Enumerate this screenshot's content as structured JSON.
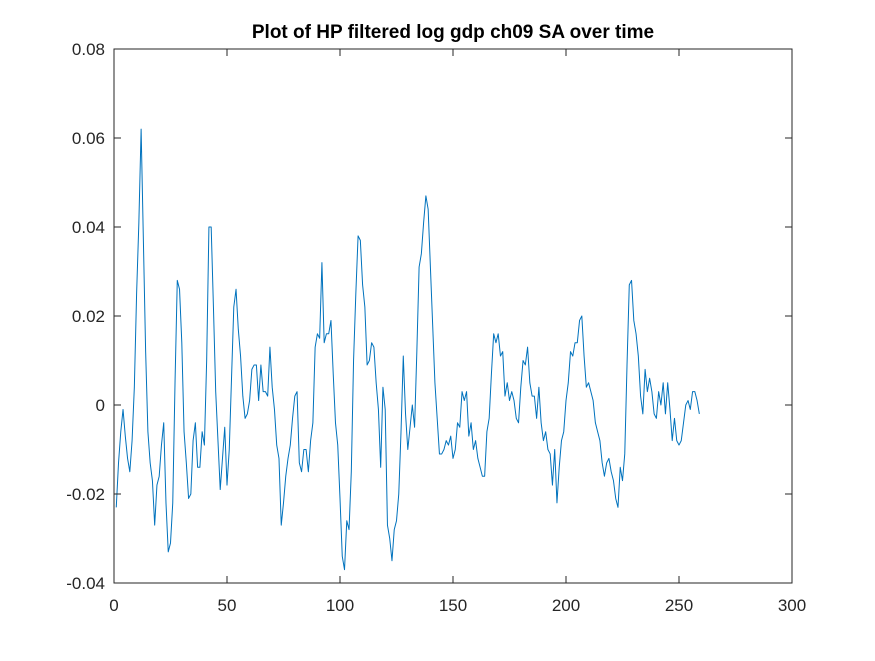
{
  "chart_data": {
    "type": "line",
    "title": "Plot of HP filtered log gdp ch09 SA over time",
    "xlabel": "",
    "ylabel": "",
    "xlim": [
      0,
      300
    ],
    "ylim": [
      -0.04,
      0.08
    ],
    "x_ticks": [
      0,
      50,
      100,
      150,
      200,
      250,
      300
    ],
    "x_tick_labels": [
      "0",
      "50",
      "100",
      "150",
      "200",
      "250",
      "300"
    ],
    "y_ticks": [
      -0.04,
      -0.02,
      0,
      0.02,
      0.04,
      0.06,
      0.08
    ],
    "y_tick_labels": [
      "-0.04",
      "-0.02",
      "0",
      "0.02",
      "0.04",
      "0.06",
      "0.08"
    ],
    "grid": false,
    "legend": "none",
    "line_color": "#0072BD",
    "series": [
      {
        "points": [
          [
            1,
            -0.023
          ],
          [
            2,
            -0.013
          ],
          [
            3,
            -0.006
          ],
          [
            4,
            -0.001
          ],
          [
            5,
            -0.007
          ],
          [
            6,
            -0.012
          ],
          [
            7,
            -0.015
          ],
          [
            8,
            -0.008
          ],
          [
            9,
            0.004
          ],
          [
            10,
            0.025
          ],
          [
            11,
            0.041
          ],
          [
            12,
            0.062
          ],
          [
            13,
            0.037
          ],
          [
            14,
            0.012
          ],
          [
            15,
            -0.006
          ],
          [
            16,
            -0.013
          ],
          [
            17,
            -0.017
          ],
          [
            18,
            -0.027
          ],
          [
            19,
            -0.018
          ],
          [
            20,
            -0.016
          ],
          [
            21,
            -0.009
          ],
          [
            22,
            -0.004
          ],
          [
            23,
            -0.022
          ],
          [
            24,
            -0.033
          ],
          [
            25,
            -0.031
          ],
          [
            26,
            -0.022
          ],
          [
            27,
            0.005
          ],
          [
            28,
            0.028
          ],
          [
            29,
            0.026
          ],
          [
            30,
            0.014
          ],
          [
            31,
            -0.006
          ],
          [
            32,
            -0.013
          ],
          [
            33,
            -0.021
          ],
          [
            34,
            -0.02
          ],
          [
            35,
            -0.008
          ],
          [
            36,
            -0.004
          ],
          [
            37,
            -0.014
          ],
          [
            38,
            -0.014
          ],
          [
            39,
            -0.006
          ],
          [
            40,
            -0.009
          ],
          [
            41,
            0.01
          ],
          [
            42,
            0.04
          ],
          [
            43,
            0.04
          ],
          [
            44,
            0.022
          ],
          [
            45,
            0.003
          ],
          [
            46,
            -0.008
          ],
          [
            47,
            -0.019
          ],
          [
            48,
            -0.012
          ],
          [
            49,
            -0.005
          ],
          [
            50,
            -0.018
          ],
          [
            51,
            -0.01
          ],
          [
            52,
            0.006
          ],
          [
            53,
            0.022
          ],
          [
            54,
            0.026
          ],
          [
            55,
            0.017
          ],
          [
            56,
            0.011
          ],
          [
            57,
            0.002
          ],
          [
            58,
            -0.003
          ],
          [
            59,
            -0.002
          ],
          [
            60,
            0.001
          ],
          [
            61,
            0.008
          ],
          [
            62,
            0.009
          ],
          [
            63,
            0.009
          ],
          [
            64,
            0.001
          ],
          [
            65,
            0.009
          ],
          [
            66,
            0.003
          ],
          [
            67,
            0.003
          ],
          [
            68,
            0.002
          ],
          [
            69,
            0.013
          ],
          [
            70,
            0.004
          ],
          [
            71,
            -0.001
          ],
          [
            72,
            -0.009
          ],
          [
            73,
            -0.012
          ],
          [
            74,
            -0.027
          ],
          [
            75,
            -0.022
          ],
          [
            76,
            -0.016
          ],
          [
            77,
            -0.012
          ],
          [
            78,
            -0.009
          ],
          [
            79,
            -0.003
          ],
          [
            80,
            0.002
          ],
          [
            81,
            0.003
          ],
          [
            82,
            -0.013
          ],
          [
            83,
            -0.015
          ],
          [
            84,
            -0.01
          ],
          [
            85,
            -0.01
          ],
          [
            86,
            -0.015
          ],
          [
            87,
            -0.008
          ],
          [
            88,
            -0.004
          ],
          [
            89,
            0.013
          ],
          [
            90,
            0.016
          ],
          [
            91,
            0.015
          ],
          [
            92,
            0.032
          ],
          [
            93,
            0.014
          ],
          [
            94,
            0.016
          ],
          [
            95,
            0.016
          ],
          [
            96,
            0.019
          ],
          [
            97,
            0.007
          ],
          [
            98,
            -0.004
          ],
          [
            99,
            -0.009
          ],
          [
            100,
            -0.021
          ],
          [
            101,
            -0.034
          ],
          [
            102,
            -0.037
          ],
          [
            103,
            -0.026
          ],
          [
            104,
            -0.028
          ],
          [
            105,
            -0.015
          ],
          [
            106,
            0.01
          ],
          [
            107,
            0.025
          ],
          [
            108,
            0.038
          ],
          [
            109,
            0.037
          ],
          [
            110,
            0.027
          ],
          [
            111,
            0.022
          ],
          [
            112,
            0.009
          ],
          [
            113,
            0.01
          ],
          [
            114,
            0.014
          ],
          [
            115,
            0.013
          ],
          [
            116,
            0.005
          ],
          [
            117,
            -0.001
          ],
          [
            118,
            -0.014
          ],
          [
            119,
            0.004
          ],
          [
            120,
            -0.001
          ],
          [
            121,
            -0.027
          ],
          [
            122,
            -0.03
          ],
          [
            123,
            -0.035
          ],
          [
            124,
            -0.028
          ],
          [
            125,
            -0.026
          ],
          [
            126,
            -0.02
          ],
          [
            127,
            -0.006
          ],
          [
            128,
            0.011
          ],
          [
            129,
            -0.002
          ],
          [
            130,
            -0.01
          ],
          [
            131,
            -0.005
          ],
          [
            132,
            0.0
          ],
          [
            133,
            -0.005
          ],
          [
            134,
            0.012
          ],
          [
            135,
            0.031
          ],
          [
            136,
            0.034
          ],
          [
            137,
            0.041
          ],
          [
            138,
            0.047
          ],
          [
            139,
            0.044
          ],
          [
            140,
            0.031
          ],
          [
            141,
            0.018
          ],
          [
            142,
            0.005
          ],
          [
            143,
            -0.003
          ],
          [
            144,
            -0.011
          ],
          [
            145,
            -0.011
          ],
          [
            146,
            -0.01
          ],
          [
            147,
            -0.008
          ],
          [
            148,
            -0.009
          ],
          [
            149,
            -0.007
          ],
          [
            150,
            -0.012
          ],
          [
            151,
            -0.01
          ],
          [
            152,
            -0.004
          ],
          [
            153,
            -0.005
          ],
          [
            154,
            0.003
          ],
          [
            155,
            0.001
          ],
          [
            156,
            0.003
          ],
          [
            157,
            -0.007
          ],
          [
            158,
            -0.004
          ],
          [
            159,
            -0.01
          ],
          [
            160,
            -0.008
          ],
          [
            161,
            -0.012
          ],
          [
            162,
            -0.014
          ],
          [
            163,
            -0.016
          ],
          [
            164,
            -0.016
          ],
          [
            165,
            -0.006
          ],
          [
            166,
            -0.003
          ],
          [
            167,
            0.007
          ],
          [
            168,
            0.016
          ],
          [
            169,
            0.014
          ],
          [
            170,
            0.016
          ],
          [
            171,
            0.011
          ],
          [
            172,
            0.012
          ],
          [
            173,
            0.002
          ],
          [
            174,
            0.005
          ],
          [
            175,
            0.001
          ],
          [
            176,
            0.003
          ],
          [
            177,
            0.001
          ],
          [
            178,
            -0.003
          ],
          [
            179,
            -0.004
          ],
          [
            180,
            0.004
          ],
          [
            181,
            0.01
          ],
          [
            182,
            0.009
          ],
          [
            183,
            0.013
          ],
          [
            184,
            0.005
          ],
          [
            185,
            0.002
          ],
          [
            186,
            0.002
          ],
          [
            187,
            -0.003
          ],
          [
            188,
            0.004
          ],
          [
            189,
            -0.004
          ],
          [
            190,
            -0.008
          ],
          [
            191,
            -0.006
          ],
          [
            192,
            -0.01
          ],
          [
            193,
            -0.011
          ],
          [
            194,
            -0.018
          ],
          [
            195,
            -0.01
          ],
          [
            196,
            -0.022
          ],
          [
            197,
            -0.014
          ],
          [
            198,
            -0.008
          ],
          [
            199,
            -0.006
          ],
          [
            200,
            0.001
          ],
          [
            201,
            0.005
          ],
          [
            202,
            0.012
          ],
          [
            203,
            0.011
          ],
          [
            204,
            0.014
          ],
          [
            205,
            0.014
          ],
          [
            206,
            0.019
          ],
          [
            207,
            0.02
          ],
          [
            208,
            0.011
          ],
          [
            209,
            0.004
          ],
          [
            210,
            0.005
          ],
          [
            211,
            0.003
          ],
          [
            212,
            0.001
          ],
          [
            213,
            -0.004
          ],
          [
            214,
            -0.006
          ],
          [
            215,
            -0.008
          ],
          [
            216,
            -0.013
          ],
          [
            217,
            -0.016
          ],
          [
            218,
            -0.013
          ],
          [
            219,
            -0.012
          ],
          [
            220,
            -0.015
          ],
          [
            221,
            -0.017
          ],
          [
            222,
            -0.021
          ],
          [
            223,
            -0.023
          ],
          [
            224,
            -0.014
          ],
          [
            225,
            -0.017
          ],
          [
            226,
            -0.011
          ],
          [
            227,
            0.009
          ],
          [
            228,
            0.027
          ],
          [
            229,
            0.028
          ],
          [
            230,
            0.019
          ],
          [
            231,
            0.016
          ],
          [
            232,
            0.011
          ],
          [
            233,
            0.002
          ],
          [
            234,
            -0.002
          ],
          [
            235,
            0.008
          ],
          [
            236,
            0.003
          ],
          [
            237,
            0.006
          ],
          [
            238,
            0.003
          ],
          [
            239,
            -0.002
          ],
          [
            240,
            -0.003
          ],
          [
            241,
            0.003
          ],
          [
            242,
            0.0
          ],
          [
            243,
            0.005
          ],
          [
            244,
            -0.002
          ],
          [
            245,
            0.005
          ],
          [
            246,
            -0.001
          ],
          [
            247,
            -0.008
          ],
          [
            248,
            -0.003
          ],
          [
            249,
            -0.008
          ],
          [
            250,
            -0.009
          ],
          [
            251,
            -0.008
          ],
          [
            252,
            -0.004
          ],
          [
            253,
            0.0
          ],
          [
            254,
            0.001
          ],
          [
            255,
            -0.001
          ],
          [
            256,
            0.003
          ],
          [
            257,
            0.003
          ],
          [
            258,
            0.001
          ],
          [
            259,
            -0.002
          ]
        ]
      }
    ]
  }
}
